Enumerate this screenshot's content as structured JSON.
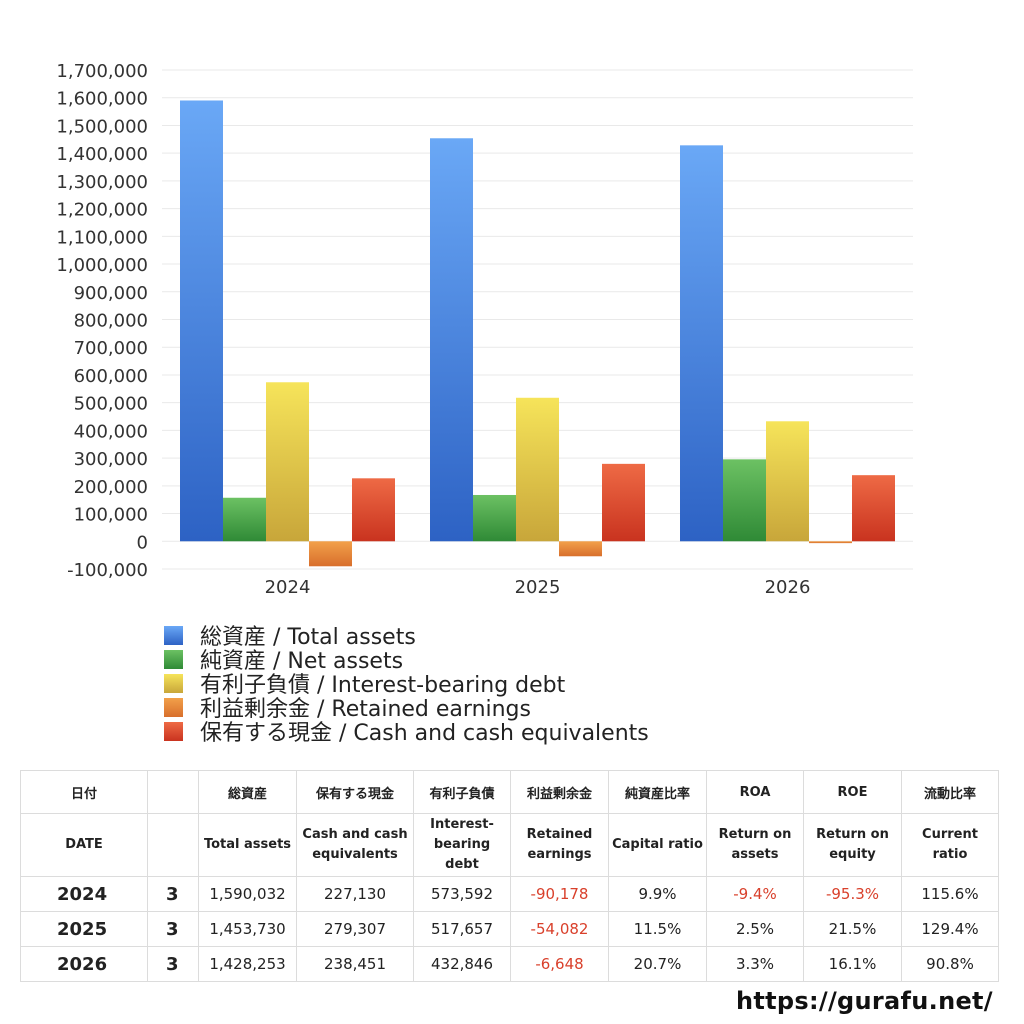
{
  "chart_data": {
    "type": "bar",
    "categories": [
      "2024",
      "2025",
      "2026"
    ],
    "series": [
      {
        "name": "総資産 / Total assets",
        "values": [
          1590032,
          1453730,
          1428253
        ]
      },
      {
        "name": "純資産 / Net assets",
        "values": [
          157000,
          167000,
          295600
        ]
      },
      {
        "name": "有利子負債 / Interest-bearing debt",
        "values": [
          573592,
          517657,
          432846
        ]
      },
      {
        "name": "利益剰余金 / Retained earnings",
        "values": [
          -90178,
          -54082,
          -6648
        ]
      },
      {
        "name": "保有する現金 /  Cash and cash equivalents",
        "values": [
          227130,
          279307,
          238451
        ]
      }
    ],
    "colors": {
      "total_assets": [
        "#6aa8f6",
        "#2d62c4"
      ],
      "net_assets": [
        "#6cc163",
        "#2f8a36"
      ],
      "interest_bearing_debt": [
        "#f6e45a",
        "#c8a63a"
      ],
      "retained_earnings": [
        "#f2a04a",
        "#d86f2c"
      ],
      "cash": [
        "#ee6a45",
        "#c9331f"
      ]
    },
    "ylim": [
      -100000,
      1700000
    ],
    "yticks": [
      "1,700,000",
      "1,600,000",
      "1,500,000",
      "1,400,000",
      "1,300,000",
      "1,200,000",
      "1,100,000",
      "1,000,000",
      "900,000",
      "800,000",
      "700,000",
      "600,000",
      "500,000",
      "400,000",
      "300,000",
      "200,000",
      "100,000",
      "0",
      "-100,000"
    ],
    "ytick_values": [
      1700000,
      1600000,
      1500000,
      1400000,
      1300000,
      1200000,
      1100000,
      1000000,
      900000,
      800000,
      700000,
      600000,
      500000,
      400000,
      300000,
      200000,
      100000,
      0,
      -100000
    ],
    "grid": true,
    "legend_position": "bottom-left",
    "xlabel": "",
    "ylabel": "",
    "title": ""
  },
  "table": {
    "headers_jp": [
      "日付",
      "",
      "総資産",
      "保有する現金",
      "有利子負債",
      "利益剰余金",
      "純資産比率",
      "ROA",
      "ROE",
      "流動比率"
    ],
    "headers_en": [
      [
        "DATE"
      ],
      [
        ""
      ],
      [
        "Total assets"
      ],
      [
        "Cash and cash",
        "equivalents"
      ],
      [
        "Interest-",
        "bearing",
        "debt"
      ],
      [
        "Retained",
        "earnings"
      ],
      [
        "Capital ratio"
      ],
      [
        "Return on",
        "assets"
      ],
      [
        "Return on",
        "equity"
      ],
      [
        "Current",
        "ratio"
      ]
    ],
    "rows": [
      {
        "year": "2024",
        "quarter": "3",
        "cells": [
          "1,590,032",
          "227,130",
          "573,592",
          "-90,178",
          "9.9%",
          "-9.4%",
          "-95.3%",
          "115.6%"
        ],
        "negative": [
          false,
          false,
          false,
          true,
          false,
          true,
          true,
          false
        ]
      },
      {
        "year": "2025",
        "quarter": "3",
        "cells": [
          "1,453,730",
          "279,307",
          "517,657",
          "-54,082",
          "11.5%",
          "2.5%",
          "21.5%",
          "129.4%"
        ],
        "negative": [
          false,
          false,
          false,
          true,
          false,
          false,
          false,
          false
        ]
      },
      {
        "year": "2026",
        "quarter": "3",
        "cells": [
          "1,428,253",
          "238,451",
          "432,846",
          "-6,648",
          "20.7%",
          "3.3%",
          "16.1%",
          "90.8%"
        ],
        "negative": [
          false,
          false,
          false,
          true,
          false,
          false,
          false,
          false
        ]
      }
    ]
  },
  "footer": {
    "url": "https://gurafu.net/"
  }
}
